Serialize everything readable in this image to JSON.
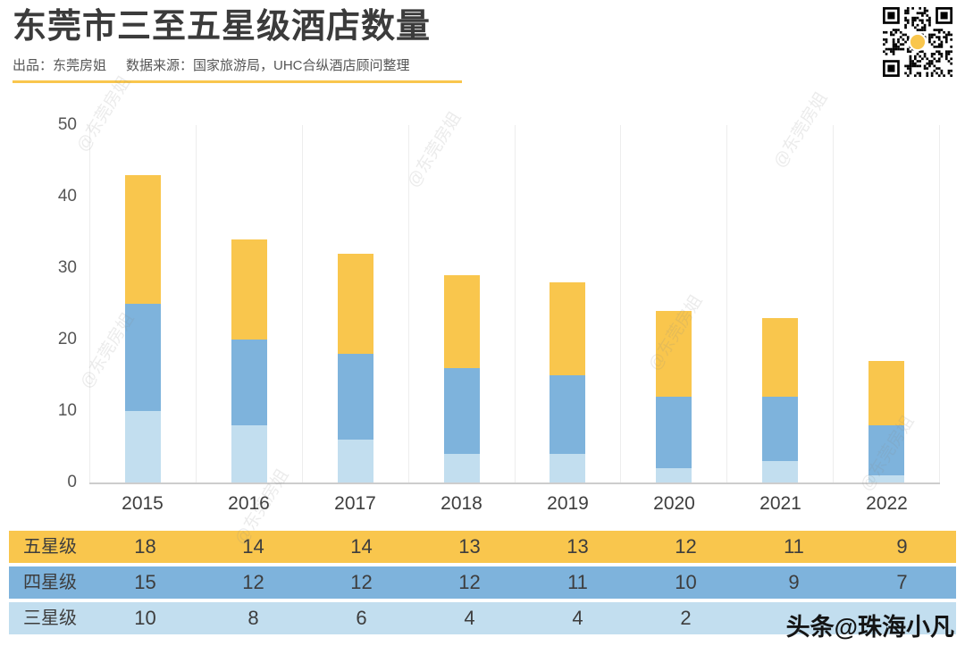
{
  "header": {
    "title": "东莞市三至五星级酒店数量",
    "subtitle_left": "出品：东莞房姐",
    "subtitle_right": "数据来源：国家旅游局，UHC合纵酒店顾问整理"
  },
  "chart_data": {
    "type": "bar",
    "stacked": true,
    "title": "东莞市三至五星级酒店数量",
    "categories": [
      "2015",
      "2016",
      "2017",
      "2018",
      "2019",
      "2020",
      "2021",
      "2022"
    ],
    "series": [
      {
        "name": "三星级",
        "color": "#C2DEEF",
        "values": [
          10,
          8,
          6,
          4,
          4,
          2,
          3,
          1
        ]
      },
      {
        "name": "四星级",
        "color": "#7EB3DC",
        "values": [
          15,
          12,
          12,
          12,
          11,
          10,
          9,
          7
        ]
      },
      {
        "name": "五星级",
        "color": "#F9C64D",
        "values": [
          18,
          14,
          14,
          13,
          13,
          12,
          11,
          9
        ]
      }
    ],
    "xlabel": "",
    "ylabel": "",
    "ylim": [
      0,
      50
    ],
    "yticks": [
      0,
      10,
      20,
      30,
      40,
      50
    ],
    "grid": true,
    "legend_position": "none (series shown as colored table rows below chart)"
  },
  "table": {
    "rows": [
      {
        "label": "五星级",
        "color": "#F9C64D",
        "values": [
          "18",
          "14",
          "14",
          "13",
          "13",
          "12",
          "11",
          "9"
        ]
      },
      {
        "label": "四星级",
        "color": "#7EB3DC",
        "values": [
          "15",
          "12",
          "12",
          "12",
          "11",
          "10",
          "9",
          "7"
        ]
      },
      {
        "label": "三星级",
        "color": "#C2DEEF",
        "values": [
          "10",
          "8",
          "6",
          "4",
          "4",
          "2",
          "",
          ""
        ]
      }
    ]
  },
  "watermark": {
    "text": "@东莞房姐"
  },
  "footer_watermark": {
    "text": "头条@珠海小凡"
  },
  "colors": {
    "accent_yellow": "#F9C64D",
    "mid_blue": "#7EB3DC",
    "light_blue": "#C2DEEF"
  }
}
